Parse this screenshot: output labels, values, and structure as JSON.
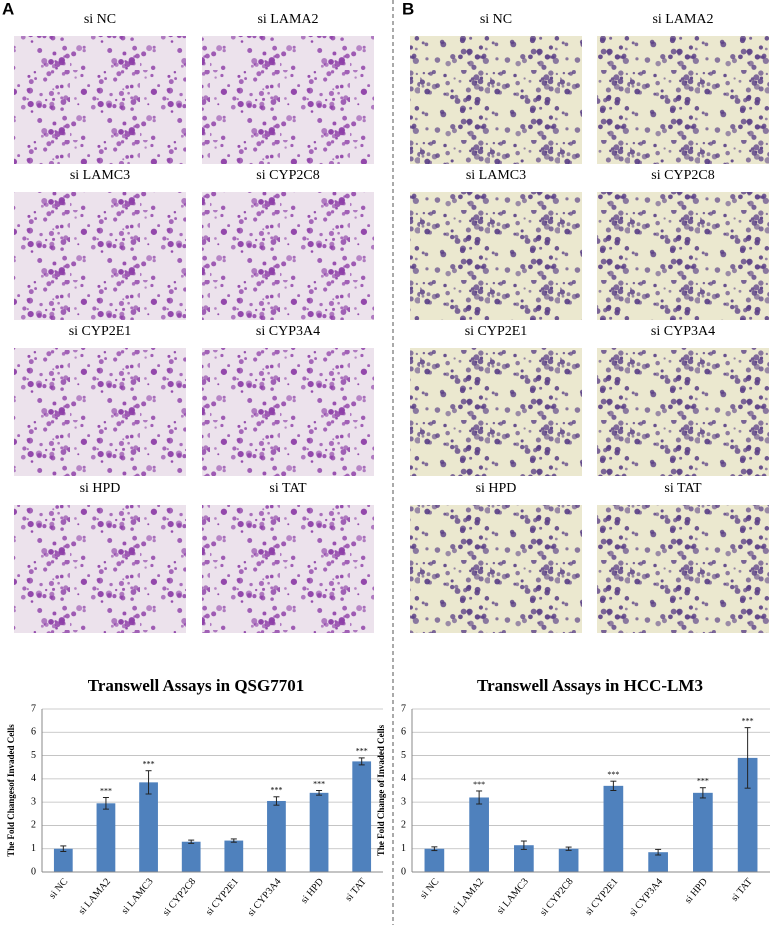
{
  "panels": [
    {
      "label": "A",
      "images": [
        "si NC",
        "si LAMA2",
        "si LAMC3",
        "si CYP2C8",
        "si CYP2E1",
        "si CYP3A4",
        "si HPD",
        "si TAT"
      ]
    },
    {
      "label": "B",
      "images": [
        "si NC",
        "si LAMA2",
        "si LAMC3",
        "si CYP2C8",
        "si CYP2E1",
        "si CYP3A4",
        "si HPD",
        "si TAT"
      ]
    }
  ],
  "chart_data": [
    {
      "type": "bar",
      "title": "Transwell Assays in QSG7701",
      "y_label": "The Fold Changesof Invaded Cells",
      "categories": [
        "si NC",
        "si LAMA2",
        "si LAMC3",
        "si CYP2C8",
        "si CYP2E1",
        "si CYP3A4",
        "si HPD",
        "si TAT"
      ],
      "values": [
        1.0,
        2.95,
        3.85,
        1.3,
        1.35,
        3.05,
        3.4,
        4.75
      ],
      "errors": [
        0.12,
        0.25,
        0.5,
        0.07,
        0.07,
        0.18,
        0.1,
        0.15
      ],
      "annotations": [
        null,
        "***",
        "***",
        null,
        null,
        "***",
        "***",
        "***"
      ],
      "color": "#4f81bd",
      "ylim": [
        0,
        7
      ],
      "yticks": [
        0,
        1,
        2,
        3,
        4,
        5,
        6,
        7
      ],
      "grid": true
    },
    {
      "type": "bar",
      "title": "Transwell Assays in HCC-LM3",
      "y_label": "The Fold Change of Invaded Cells",
      "categories": [
        "si NC",
        "si LAMA2",
        "si LAMC3",
        "si CYP2C8",
        "si CYP2E1",
        "si CYP3A4",
        "si HPD",
        "si TAT"
      ],
      "values": [
        1.0,
        3.2,
        1.15,
        1.0,
        3.7,
        0.85,
        3.4,
        4.9
      ],
      "errors": [
        0.08,
        0.28,
        0.18,
        0.07,
        0.2,
        0.12,
        0.22,
        1.3
      ],
      "annotations": [
        null,
        "***",
        null,
        null,
        "***",
        null,
        "***",
        "***"
      ],
      "color": "#4f81bd",
      "ylim": [
        0,
        7
      ],
      "yticks": [
        0,
        1,
        2,
        3,
        4,
        5,
        6,
        7
      ],
      "grid": true
    }
  ]
}
